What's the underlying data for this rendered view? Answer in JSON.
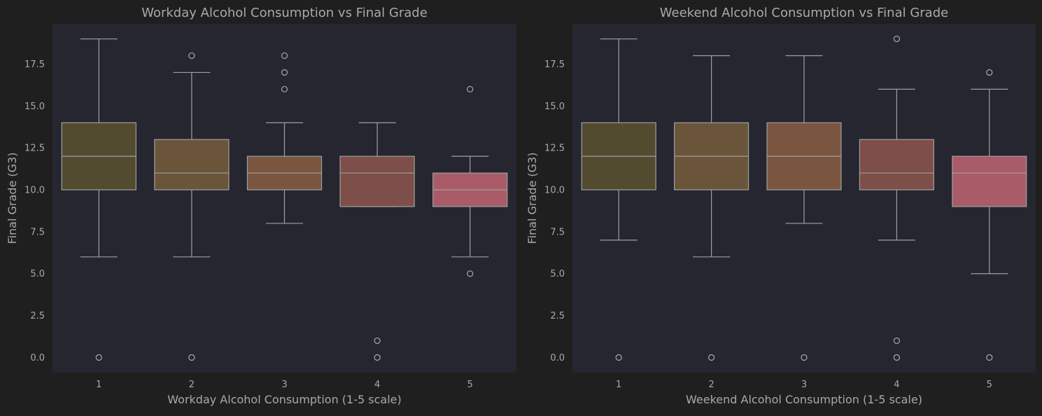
{
  "chart_data": [
    {
      "type": "box",
      "title": "Workday Alcohol Consumption vs Final Grade",
      "xlabel": "Workday Alcohol Consumption (1-5 scale)",
      "ylabel": "Final Grade (G3)",
      "ylim": [
        -0.9,
        19.9
      ],
      "yticks": [
        "0.0",
        "2.5",
        "5.0",
        "7.5",
        "10.0",
        "12.5",
        "15.0",
        "17.5"
      ],
      "ytick_values": [
        0,
        2.5,
        5,
        7.5,
        10,
        12.5,
        15,
        17.5
      ],
      "grid": false,
      "categories": [
        "1",
        "2",
        "3",
        "4",
        "5"
      ],
      "boxes": [
        {
          "category": "1",
          "whisker_low": 6,
          "q1": 10,
          "median": 12,
          "q3": 14,
          "whisker_high": 19,
          "outliers": [
            0
          ]
        },
        {
          "category": "2",
          "whisker_low": 6,
          "q1": 10,
          "median": 11,
          "q3": 13,
          "whisker_high": 17,
          "outliers": [
            0,
            18
          ]
        },
        {
          "category": "3",
          "whisker_low": 8,
          "q1": 10,
          "median": 11,
          "q3": 12,
          "whisker_high": 14,
          "outliers": [
            16,
            17,
            18
          ]
        },
        {
          "category": "4",
          "whisker_low": 9,
          "q1": 9,
          "median": 11,
          "q3": 12,
          "whisker_high": 14,
          "outliers": [
            0,
            1
          ]
        },
        {
          "category": "5",
          "whisker_low": 6,
          "q1": 9,
          "median": 10,
          "q3": 11,
          "whisker_high": 12,
          "outliers": [
            5,
            16
          ]
        }
      ]
    },
    {
      "type": "box",
      "title": "Weekend Alcohol Consumption vs Final Grade",
      "xlabel": "Weekend Alcohol Consumption (1-5 scale)",
      "ylabel": "Final Grade (G3)",
      "ylim": [
        -0.9,
        19.9
      ],
      "yticks": [
        "0.0",
        "2.5",
        "5.0",
        "7.5",
        "10.0",
        "12.5",
        "15.0",
        "17.5"
      ],
      "ytick_values": [
        0,
        2.5,
        5,
        7.5,
        10,
        12.5,
        15,
        17.5
      ],
      "grid": false,
      "categories": [
        "1",
        "2",
        "3",
        "4",
        "5"
      ],
      "boxes": [
        {
          "category": "1",
          "whisker_low": 7,
          "q1": 10,
          "median": 12,
          "q3": 14,
          "whisker_high": 19,
          "outliers": [
            0
          ]
        },
        {
          "category": "2",
          "whisker_low": 6,
          "q1": 10,
          "median": 12,
          "q3": 14,
          "whisker_high": 18,
          "outliers": [
            0
          ]
        },
        {
          "category": "3",
          "whisker_low": 8,
          "q1": 10,
          "median": 12,
          "q3": 14,
          "whisker_high": 18,
          "outliers": [
            0
          ]
        },
        {
          "category": "4",
          "whisker_low": 7,
          "q1": 10,
          "median": 11,
          "q3": 13,
          "whisker_high": 16,
          "outliers": [
            0,
            1,
            19
          ]
        },
        {
          "category": "5",
          "whisker_low": 5,
          "q1": 9,
          "median": 11,
          "q3": 12,
          "whisker_high": 16,
          "outliers": [
            0,
            17
          ]
        }
      ]
    }
  ],
  "colors": {
    "figure_background": "#1f1f1f",
    "axes_background": "#252630",
    "text": "#a9a9a9",
    "line": "#a0a0a0",
    "box_fills": [
      "#524b30",
      "#6a553a",
      "#7a5640",
      "#7e4e48",
      "#a95b68"
    ]
  }
}
